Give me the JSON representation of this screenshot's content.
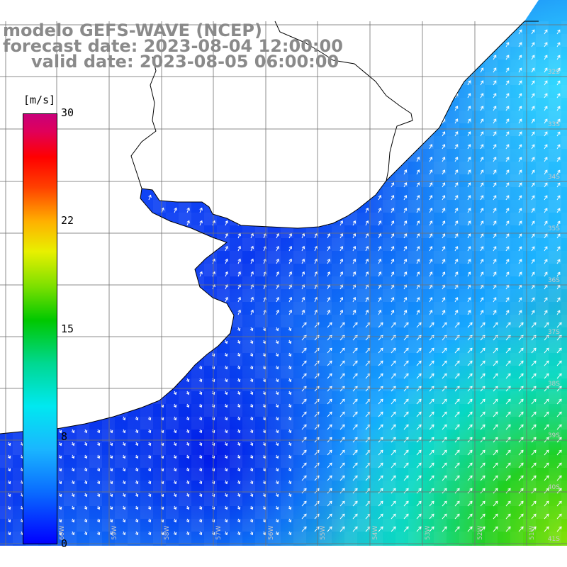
{
  "title": {
    "line1": "modelo GEFS-WAVE (NCEP)",
    "line2": "forecast date: 2023-08-04 12:00:00",
    "line3": "valid date: 2023-08-05 06:00:00"
  },
  "colorbar": {
    "unit": "[m/s]",
    "ticks": [
      "30",
      "22",
      "15",
      "8",
      "0"
    ],
    "tick_values": [
      30,
      22,
      15,
      8,
      0
    ],
    "range": [
      0,
      30
    ],
    "colors": [
      "#0000ff",
      "#1ab6ff",
      "#00e8f0",
      "#00c800",
      "#e8f000",
      "#ff4000",
      "#c8007a"
    ]
  },
  "colors": {
    "land": "#ffffff",
    "coast": "#000000",
    "grid": "#808080",
    "arrows": "#ffffff"
  },
  "grid_labels": {
    "lat": [
      "32S",
      "33S",
      "34S",
      "35S",
      "36S",
      "37S",
      "38S",
      "39S",
      "40S",
      "41S"
    ],
    "lon": [
      "60W",
      "59W",
      "58W",
      "57W",
      "56W",
      "55W",
      "54W",
      "53W",
      "52W",
      "51W"
    ]
  }
}
